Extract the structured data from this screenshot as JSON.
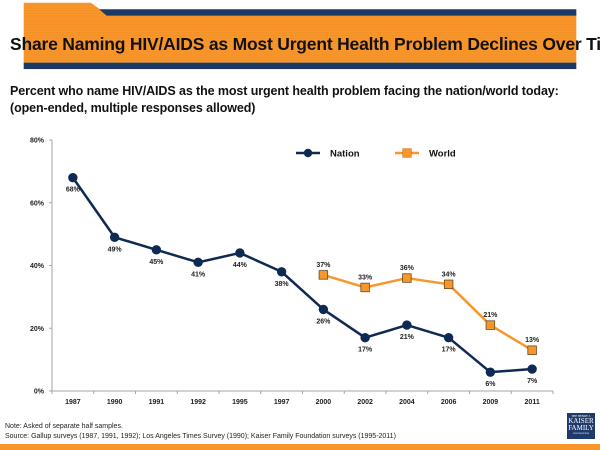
{
  "header": {
    "title": "Share Naming HIV/AIDS as Most Urgent Health Problem Declines Over Time",
    "colors": {
      "orange": "#f7962b",
      "navy": "#1b3a63"
    }
  },
  "subtitle": {
    "line1": "Percent who name HIV/AIDS as the most urgent health problem facing the nation/world today:",
    "line2": "(open-ended, multiple responses allowed)"
  },
  "footer": {
    "note": "Note: Asked of separate half samples.",
    "source": "Source: Gallup surveys (1987, 1991, 1992); Los Angeles Times Survey (1990); Kaiser Family Foundation surveys (1995-2011)"
  },
  "logo": {
    "line1": "THE HENRY J.",
    "line2": "KAISER",
    "line3": "FAMILY",
    "line4": "FOUNDATION"
  },
  "chart_data": {
    "type": "line",
    "title": "",
    "xlabel": "",
    "ylabel": "",
    "categories": [
      "1987",
      "1990",
      "1991",
      "1992",
      "1995",
      "1997",
      "2000",
      "2002",
      "2004",
      "2006",
      "2009",
      "2011"
    ],
    "ylim": [
      0,
      80
    ],
    "yticks": [
      0,
      20,
      40,
      60,
      80
    ],
    "ytick_labels": [
      "0%",
      "20%",
      "40%",
      "60%",
      "80%"
    ],
    "grid": false,
    "legend_position": "top-right",
    "series": [
      {
        "name": "Nation",
        "color": "#0f2a52",
        "marker": "circle",
        "values": [
          68,
          49,
          45,
          41,
          44,
          38,
          26,
          17,
          21,
          17,
          6,
          7
        ],
        "labels": [
          "68%",
          "49%",
          "45%",
          "41%",
          "44%",
          "38%",
          "26%",
          "17%",
          "21%",
          "17%",
          "6%",
          "7%"
        ],
        "label_position": "below"
      },
      {
        "name": "World",
        "color": "#f7962b",
        "marker": "square",
        "values": [
          null,
          null,
          null,
          null,
          null,
          null,
          37,
          33,
          36,
          34,
          21,
          13
        ],
        "labels": [
          null,
          null,
          null,
          null,
          null,
          null,
          "37%",
          "33%",
          "36%",
          "34%",
          "21%",
          "13%"
        ],
        "label_position": "above"
      }
    ]
  }
}
